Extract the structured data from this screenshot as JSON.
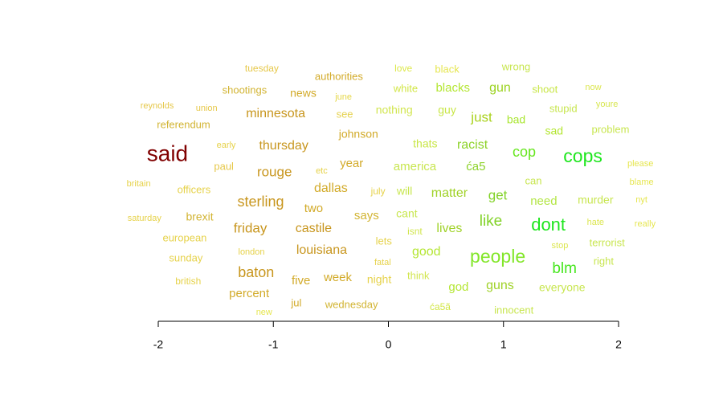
{
  "chart_data": {
    "type": "wordcloud",
    "xlim": [
      -2,
      2
    ],
    "xticks": [
      -2,
      -1,
      0,
      1,
      2
    ],
    "words": [
      {
        "text": "tuesday",
        "x": -1.1,
        "color": "#e6c84a"
      },
      {
        "text": "authorities",
        "x": -0.43,
        "color": "#d2aa28"
      },
      {
        "text": "love",
        "x": 0.13,
        "color": "#dde84a"
      },
      {
        "text": "black",
        "x": 0.51,
        "color": "#e6e650"
      },
      {
        "text": "wrong",
        "x": 1.11,
        "color": "#c8e650"
      },
      {
        "text": "shootings",
        "x": -1.25,
        "color": "#d2b432"
      },
      {
        "text": "news",
        "x": -0.74,
        "color": "#d2aa28"
      },
      {
        "text": "june",
        "x": -0.39,
        "color": "#e6d84a"
      },
      {
        "text": "white",
        "x": 0.15,
        "color": "#d2e646"
      },
      {
        "text": "blacks",
        "x": 0.56,
        "color": "#b4e632"
      },
      {
        "text": "gun",
        "x": 0.97,
        "color": "#9ad21e"
      },
      {
        "text": "shoot",
        "x": 1.36,
        "color": "#c8e646"
      },
      {
        "text": "now",
        "x": 1.78,
        "color": "#dce650"
      },
      {
        "text": "reynolds",
        "x": -2.01,
        "color": "#e6c84a"
      },
      {
        "text": "union",
        "x": -1.58,
        "color": "#e6c84a"
      },
      {
        "text": "minnesota",
        "x": -0.98,
        "color": "#c8961e"
      },
      {
        "text": "see",
        "x": -0.38,
        "color": "#e6d250"
      },
      {
        "text": "nothing",
        "x": 0.05,
        "color": "#d2e650"
      },
      {
        "text": "guy",
        "x": 0.51,
        "color": "#c8e646"
      },
      {
        "text": "just",
        "x": 0.81,
        "color": "#aad21e"
      },
      {
        "text": "bad",
        "x": 1.11,
        "color": "#aae632"
      },
      {
        "text": "stupid",
        "x": 1.52,
        "color": "#c8e650"
      },
      {
        "text": "youre",
        "x": 1.9,
        "color": "#d7e650"
      },
      {
        "text": "referendum",
        "x": -1.78,
        "color": "#d2b432"
      },
      {
        "text": "johnson",
        "x": -0.26,
        "color": "#d2aa28"
      },
      {
        "text": "sad",
        "x": 1.44,
        "color": "#b4e632"
      },
      {
        "text": "problem",
        "x": 1.93,
        "color": "#c8e650"
      },
      {
        "text": "said",
        "x": -1.92,
        "color": "#800000"
      },
      {
        "text": "early",
        "x": -1.41,
        "color": "#e6d24a"
      },
      {
        "text": "thursday",
        "x": -0.91,
        "color": "#c8961e"
      },
      {
        "text": "thats",
        "x": 0.32,
        "color": "#c8e646"
      },
      {
        "text": "racist",
        "x": 0.73,
        "color": "#8cd228"
      },
      {
        "text": "cop",
        "x": 1.18,
        "color": "#66e61e"
      },
      {
        "text": "cops",
        "x": 1.69,
        "color": "#1ee61e"
      },
      {
        "text": "paul",
        "x": -1.43,
        "color": "#e6c84a"
      },
      {
        "text": "rouge",
        "x": -0.99,
        "color": "#c8961e"
      },
      {
        "text": "etc",
        "x": -0.58,
        "color": "#e6d24a"
      },
      {
        "text": "year",
        "x": -0.32,
        "color": "#d2aa28"
      },
      {
        "text": "america",
        "x": 0.23,
        "color": "#c8e650"
      },
      {
        "text": "ća5",
        "x": 0.76,
        "color": "#8cd228"
      },
      {
        "text": "please",
        "x": 2.19,
        "color": "#e6e650"
      },
      {
        "text": "britain",
        "x": -2.17,
        "color": "#e6d24a"
      },
      {
        "text": "officers",
        "x": -1.69,
        "color": "#e6d24a"
      },
      {
        "text": "dallas",
        "x": -0.5,
        "color": "#d2aa28"
      },
      {
        "text": "july",
        "x": -0.09,
        "color": "#e6d24a"
      },
      {
        "text": "will",
        "x": 0.14,
        "color": "#c8e650"
      },
      {
        "text": "matter",
        "x": 0.53,
        "color": "#a0d228"
      },
      {
        "text": "get",
        "x": 0.95,
        "color": "#82d228"
      },
      {
        "text": "can",
        "x": 1.26,
        "color": "#c8e650"
      },
      {
        "text": "need",
        "x": 1.35,
        "color": "#b4e646"
      },
      {
        "text": "murder",
        "x": 1.8,
        "color": "#c8e650"
      },
      {
        "text": "blame",
        "x": 2.2,
        "color": "#e6e650"
      },
      {
        "text": "nyt",
        "x": 2.2,
        "color": "#e6e650"
      },
      {
        "text": "sterling",
        "x": -1.11,
        "color": "#c8961e"
      },
      {
        "text": "two",
        "x": -0.65,
        "color": "#d2aa28"
      },
      {
        "text": "saturday",
        "x": -2.12,
        "color": "#e6d24a"
      },
      {
        "text": "brexit",
        "x": -1.64,
        "color": "#d2b432"
      },
      {
        "text": "says",
        "x": -0.19,
        "color": "#d2b432"
      },
      {
        "text": "cant",
        "x": 0.16,
        "color": "#c8e650"
      },
      {
        "text": "like",
        "x": 0.89,
        "color": "#82d228"
      },
      {
        "text": "dont",
        "x": 1.39,
        "color": "#1ee61e"
      },
      {
        "text": "hate",
        "x": 1.8,
        "color": "#dce650"
      },
      {
        "text": "really",
        "x": 2.23,
        "color": "#e6e650"
      },
      {
        "text": "friday",
        "x": -1.2,
        "color": "#c8961e"
      },
      {
        "text": "castile",
        "x": -0.65,
        "color": "#c8961e"
      },
      {
        "text": "isnt",
        "x": 0.23,
        "color": "#d2e650"
      },
      {
        "text": "lives",
        "x": 0.53,
        "color": "#a0d228"
      },
      {
        "text": "european",
        "x": -1.77,
        "color": "#e6d24a"
      },
      {
        "text": "lets",
        "x": -0.04,
        "color": "#e6d24a"
      },
      {
        "text": "stop",
        "x": 1.49,
        "color": "#dce650"
      },
      {
        "text": "terrorist",
        "x": 1.9,
        "color": "#c8e650"
      },
      {
        "text": "sunday",
        "x": -1.76,
        "color": "#e6d24a"
      },
      {
        "text": "london",
        "x": -1.19,
        "color": "#e6d24a"
      },
      {
        "text": "louisiana",
        "x": -0.58,
        "color": "#c8961e"
      },
      {
        "text": "good",
        "x": 0.33,
        "color": "#b4e632"
      },
      {
        "text": "people",
        "x": 0.95,
        "color": "#82e628"
      },
      {
        "text": "fatal",
        "x": -0.05,
        "color": "#e6d24a"
      },
      {
        "text": "right",
        "x": 1.87,
        "color": "#c8e650"
      },
      {
        "text": "baton",
        "x": -1.15,
        "color": "#c8961e"
      },
      {
        "text": "blm",
        "x": 1.53,
        "color": "#46e61e"
      },
      {
        "text": "british",
        "x": -1.74,
        "color": "#e6d24a"
      },
      {
        "text": "five",
        "x": -0.76,
        "color": "#d2aa28"
      },
      {
        "text": "week",
        "x": -0.44,
        "color": "#d2aa28"
      },
      {
        "text": "night",
        "x": -0.08,
        "color": "#e6d24a"
      },
      {
        "text": "think",
        "x": 0.26,
        "color": "#d2e650"
      },
      {
        "text": "god",
        "x": 0.61,
        "color": "#b4e632"
      },
      {
        "text": "guns",
        "x": 0.97,
        "color": "#a0d228"
      },
      {
        "text": "everyone",
        "x": 1.51,
        "color": "#c8e650"
      },
      {
        "text": "percent",
        "x": -1.21,
        "color": "#d2aa28"
      },
      {
        "text": "jul",
        "x": -0.8,
        "color": "#d2aa28"
      },
      {
        "text": "wednesday",
        "x": -0.32,
        "color": "#d2b432"
      },
      {
        "text": "ća5ã",
        "x": 0.45,
        "color": "#d2e646"
      },
      {
        "text": "innocent",
        "x": 1.09,
        "color": "#c8e650"
      },
      {
        "text": "new",
        "x": -1.08,
        "color": "#e6e650"
      }
    ]
  }
}
